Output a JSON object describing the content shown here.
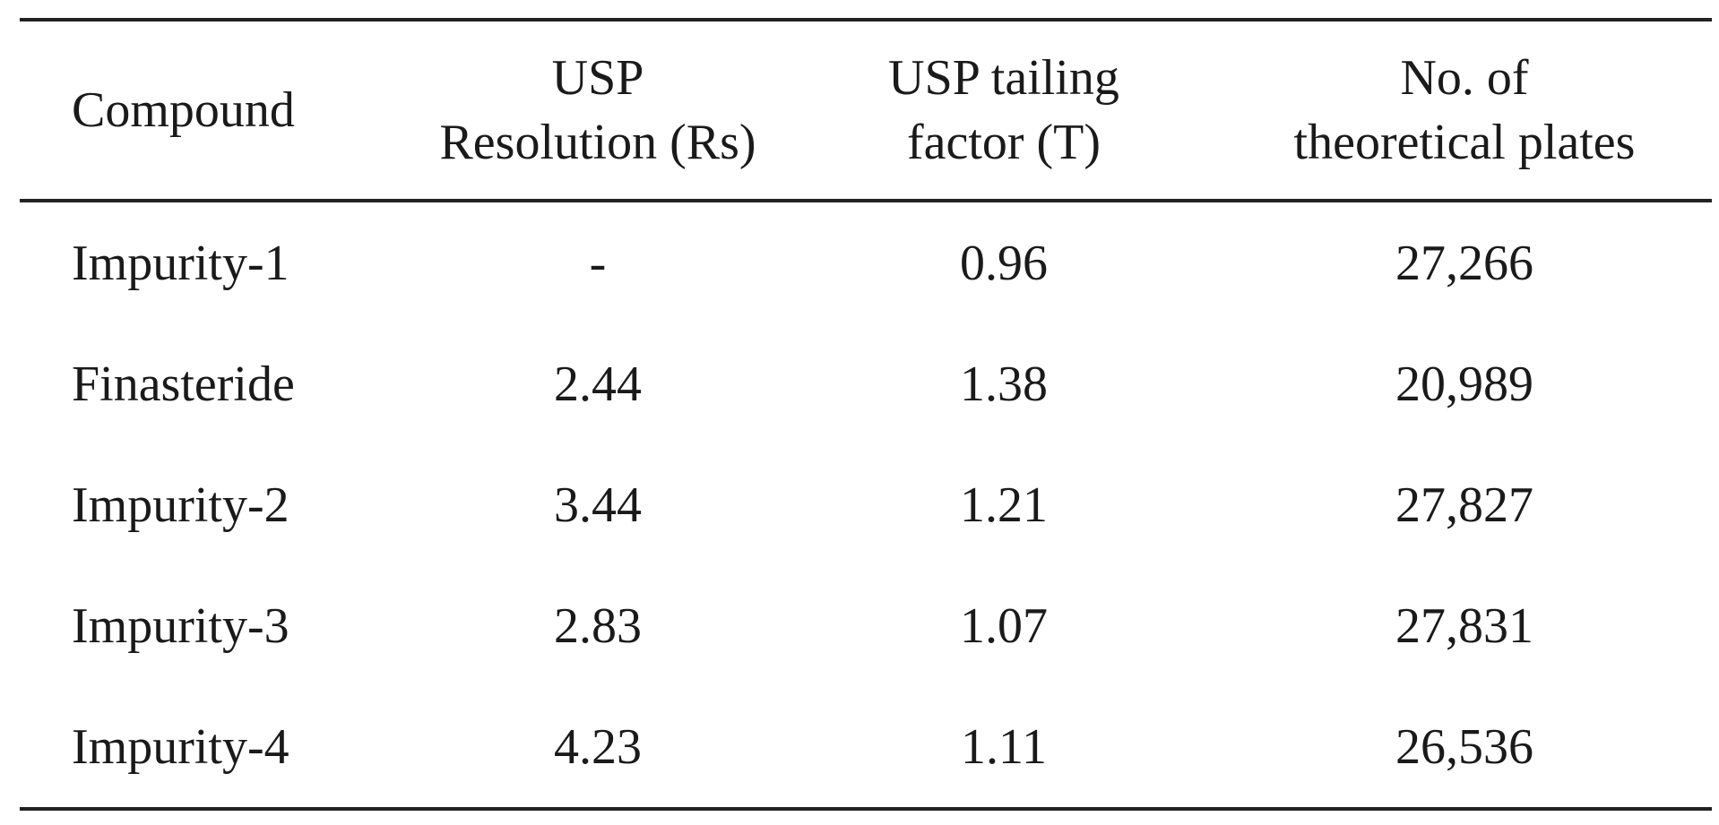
{
  "table": {
    "headers": [
      {
        "lines": [
          "Compound"
        ]
      },
      {
        "lines": [
          "USP",
          "Resolution (Rs)"
        ]
      },
      {
        "lines": [
          "USP tailing",
          "factor (T)"
        ]
      },
      {
        "lines": [
          "No. of",
          "theoretical plates"
        ]
      }
    ],
    "rows": [
      {
        "compound": "Impurity-1",
        "resolution": "-",
        "tailing": "0.96",
        "plates": "27,266"
      },
      {
        "compound": "Finasteride",
        "resolution": "2.44",
        "tailing": "1.38",
        "plates": "20,989"
      },
      {
        "compound": "Impurity-2",
        "resolution": "3.44",
        "tailing": "1.21",
        "plates": "27,827"
      },
      {
        "compound": "Impurity-3",
        "resolution": "2.83",
        "tailing": "1.07",
        "plates": "27,831"
      },
      {
        "compound": "Impurity-4",
        "resolution": "4.23",
        "tailing": "1.11",
        "plates": "26,536"
      }
    ]
  }
}
